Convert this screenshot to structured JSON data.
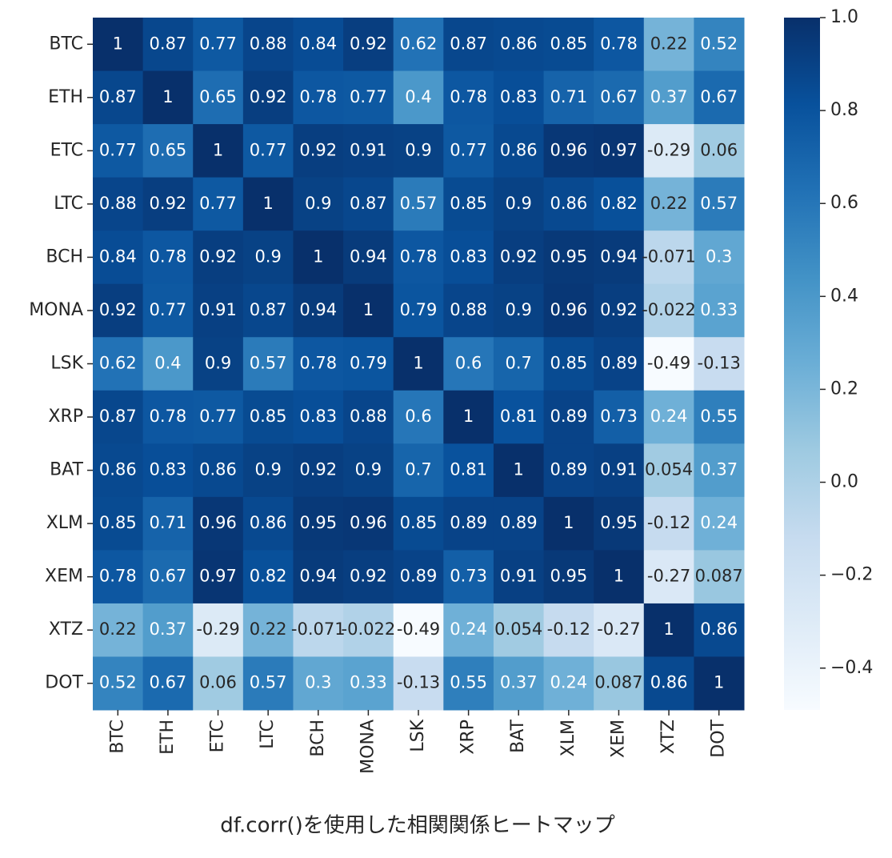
{
  "chart_data": {
    "type": "heatmap",
    "title": "df.corr()を使用した相関関係ヒートマップ",
    "x_categories": [
      "BTC",
      "ETH",
      "ETC",
      "LTC",
      "BCH",
      "MONA",
      "LSK",
      "XRP",
      "BAT",
      "XLM",
      "XEM",
      "XTZ",
      "DOT"
    ],
    "y_categories": [
      "BTC",
      "ETH",
      "ETC",
      "LTC",
      "BCH",
      "MONA",
      "LSK",
      "XRP",
      "BAT",
      "XLM",
      "XEM",
      "XTZ",
      "DOT"
    ],
    "values": [
      [
        1,
        0.87,
        0.77,
        0.88,
        0.84,
        0.92,
        0.62,
        0.87,
        0.86,
        0.85,
        0.78,
        0.22,
        0.52
      ],
      [
        0.87,
        1,
        0.65,
        0.92,
        0.78,
        0.77,
        0.4,
        0.78,
        0.83,
        0.71,
        0.67,
        0.37,
        0.67
      ],
      [
        0.77,
        0.65,
        1,
        0.77,
        0.92,
        0.91,
        0.9,
        0.77,
        0.86,
        0.96,
        0.97,
        -0.29,
        0.06
      ],
      [
        0.88,
        0.92,
        0.77,
        1,
        0.9,
        0.87,
        0.57,
        0.85,
        0.9,
        0.86,
        0.82,
        0.22,
        0.57
      ],
      [
        0.84,
        0.78,
        0.92,
        0.9,
        1,
        0.94,
        0.78,
        0.83,
        0.92,
        0.95,
        0.94,
        -0.071,
        0.3
      ],
      [
        0.92,
        0.77,
        0.91,
        0.87,
        0.94,
        1,
        0.79,
        0.88,
        0.9,
        0.96,
        0.92,
        -0.022,
        0.33
      ],
      [
        0.62,
        0.4,
        0.9,
        0.57,
        0.78,
        0.79,
        1,
        0.6,
        0.7,
        0.85,
        0.89,
        -0.49,
        -0.13
      ],
      [
        0.87,
        0.78,
        0.77,
        0.85,
        0.83,
        0.88,
        0.6,
        1,
        0.81,
        0.89,
        0.73,
        0.24,
        0.55
      ],
      [
        0.86,
        0.83,
        0.86,
        0.9,
        0.92,
        0.9,
        0.7,
        0.81,
        1,
        0.89,
        0.91,
        0.054,
        0.37
      ],
      [
        0.85,
        0.71,
        0.96,
        0.86,
        0.95,
        0.96,
        0.85,
        0.89,
        0.89,
        1,
        0.95,
        -0.12,
        0.24
      ],
      [
        0.78,
        0.67,
        0.97,
        0.82,
        0.94,
        0.92,
        0.89,
        0.73,
        0.91,
        0.95,
        1,
        -0.27,
        0.087
      ],
      [
        0.22,
        0.37,
        -0.29,
        0.22,
        -0.071,
        -0.022,
        -0.49,
        0.24,
        0.054,
        -0.12,
        -0.27,
        1,
        0.86
      ],
      [
        0.52,
        0.67,
        0.06,
        0.57,
        0.3,
        0.33,
        -0.13,
        0.55,
        0.37,
        0.24,
        0.087,
        0.86,
        1
      ]
    ],
    "colormap": "Blues",
    "annotate": true,
    "colorbar": {
      "lim": [
        -0.49,
        1.0
      ],
      "ticks": [
        {
          "value": 1.0,
          "label": "1.0"
        },
        0.8,
        0.6,
        0.4,
        0.2,
        {
          "value": 0,
          "label": "0.0"
        },
        {
          "value": -0.2,
          "label": "−0.2"
        },
        {
          "value": -0.4,
          "label": "−0.4"
        }
      ]
    }
  }
}
